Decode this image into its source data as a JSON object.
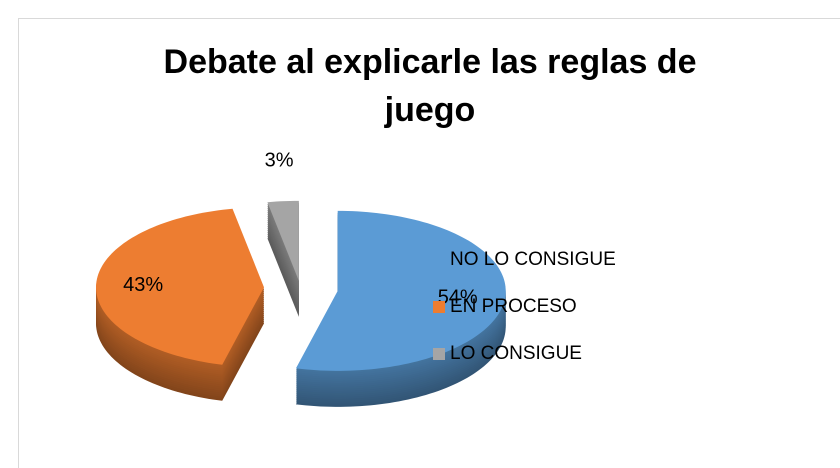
{
  "chart_data": {
    "type": "pie",
    "title": "Debate al explicarle las reglas de juego",
    "categories": [
      "NO LO CONSIGUE",
      "EN PROCESO",
      "LO CONSIGUE"
    ],
    "values": [
      54,
      43,
      3
    ],
    "value_labels": [
      "54%",
      "43%",
      "3%"
    ],
    "colors": [
      "#5b9bd5",
      "#ed7d31",
      "#a5a5a5"
    ],
    "legend": "right"
  }
}
